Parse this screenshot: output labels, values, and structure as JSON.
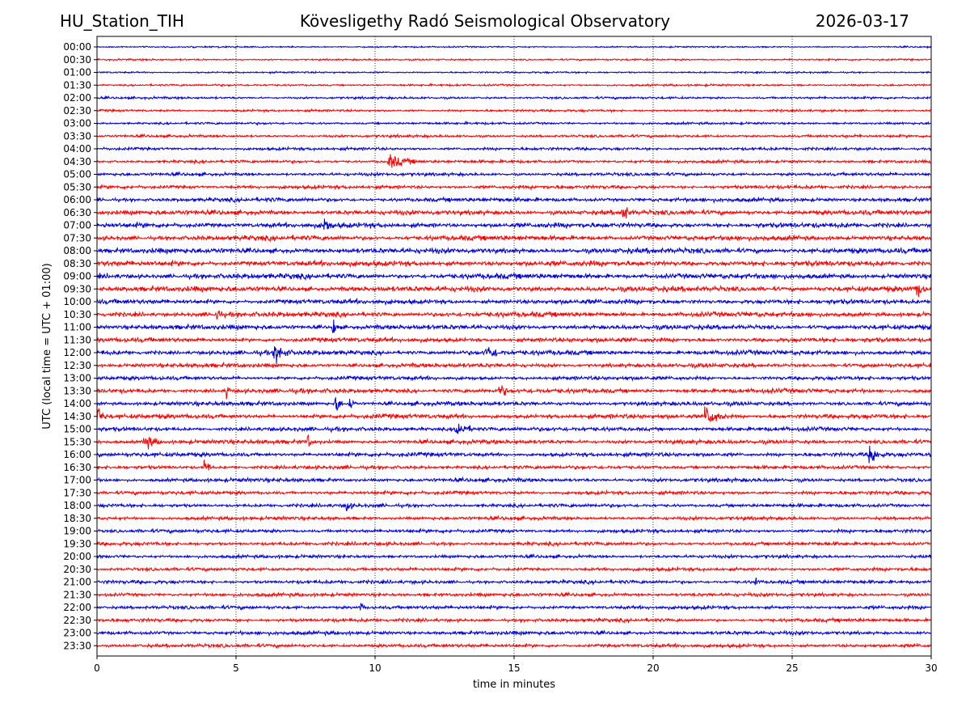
{
  "header": {
    "station": "HU_Station_TIH",
    "title": "Kövesligethy Radó Seismological Observatory",
    "date": "2026-03-17"
  },
  "chart_data": {
    "type": "line",
    "title": "Kövesligethy Radó Seismological Observatory",
    "xlabel": "time in minutes",
    "ylabel": "UTC (local time = UTC + 01:00)",
    "xlim": [
      0,
      30
    ],
    "x_ticks": [
      0,
      5,
      10,
      15,
      20,
      25,
      30
    ],
    "grid": "vertical dotted lines at 5-minute intervals",
    "colors": [
      "#0000dd",
      "#ff0000"
    ],
    "row_labels": [
      "00:00",
      "00:30",
      "01:00",
      "01:30",
      "02:00",
      "02:30",
      "03:00",
      "03:30",
      "04:00",
      "04:30",
      "05:00",
      "05:30",
      "06:00",
      "06:30",
      "07:00",
      "07:30",
      "08:00",
      "08:30",
      "09:00",
      "09:30",
      "10:00",
      "10:30",
      "11:00",
      "11:30",
      "12:00",
      "12:30",
      "13:00",
      "13:30",
      "14:00",
      "14:30",
      "15:00",
      "15:30",
      "16:00",
      "16:30",
      "17:00",
      "17:30",
      "18:00",
      "18:30",
      "19:00",
      "19:30",
      "20:00",
      "20:30",
      "21:00",
      "21:30",
      "22:00",
      "22:30",
      "23:00",
      "23:30"
    ],
    "noise_levels": [
      0.25,
      0.3,
      0.3,
      0.35,
      0.4,
      0.4,
      0.4,
      0.45,
      0.5,
      0.5,
      0.55,
      0.6,
      0.7,
      0.8,
      0.85,
      0.85,
      0.9,
      0.9,
      0.9,
      0.9,
      0.8,
      0.85,
      0.8,
      0.75,
      0.8,
      0.7,
      0.65,
      0.75,
      0.7,
      0.75,
      0.7,
      0.7,
      0.7,
      0.6,
      0.65,
      0.6,
      0.6,
      0.6,
      0.6,
      0.6,
      0.55,
      0.55,
      0.6,
      0.6,
      0.6,
      0.6,
      0.65,
      0.6
    ],
    "events": [
      {
        "row": "04:30",
        "minute": 10.5,
        "duration": 1.8,
        "amplitude": 1.6
      },
      {
        "row": "06:30",
        "minute": 18.9,
        "duration": 0.4,
        "amplitude": 2.0
      },
      {
        "row": "07:00",
        "minute": 8.2,
        "duration": 0.5,
        "amplitude": 1.3
      },
      {
        "row": "10:30",
        "minute": 4.3,
        "duration": 0.3,
        "amplitude": 1.5
      },
      {
        "row": "11:00",
        "minute": 8.5,
        "duration": 0.3,
        "amplitude": 1.5
      },
      {
        "row": "12:00",
        "minute": 6.4,
        "duration": 0.9,
        "amplitude": 1.6
      },
      {
        "row": "12:00",
        "minute": 14.0,
        "duration": 1.3,
        "amplitude": 1.1
      },
      {
        "row": "13:30",
        "minute": 14.5,
        "duration": 0.5,
        "amplitude": 1.4
      },
      {
        "row": "13:30",
        "minute": 4.7,
        "duration": 0.2,
        "amplitude": 1.3
      },
      {
        "row": "14:00",
        "minute": 8.6,
        "duration": 0.3,
        "amplitude": 2.2
      },
      {
        "row": "14:00",
        "minute": 9.1,
        "duration": 0.3,
        "amplitude": 1.5
      },
      {
        "row": "14:30",
        "minute": 0.0,
        "duration": 0.5,
        "amplitude": 1.8
      },
      {
        "row": "14:30",
        "minute": 21.9,
        "duration": 0.8,
        "amplitude": 2.4
      },
      {
        "row": "15:00",
        "minute": 12.9,
        "duration": 1.0,
        "amplitude": 1.6
      },
      {
        "row": "15:30",
        "minute": 1.7,
        "duration": 1.1,
        "amplitude": 1.3
      },
      {
        "row": "15:30",
        "minute": 7.6,
        "duration": 0.3,
        "amplitude": 1.2
      },
      {
        "row": "16:00",
        "minute": 27.8,
        "duration": 0.8,
        "amplitude": 1.8
      },
      {
        "row": "16:30",
        "minute": 3.9,
        "duration": 0.3,
        "amplitude": 2.0
      },
      {
        "row": "18:00",
        "minute": 9.0,
        "duration": 0.4,
        "amplitude": 1.4
      },
      {
        "row": "21:00",
        "minute": 23.7,
        "duration": 0.2,
        "amplitude": 1.2
      },
      {
        "row": "22:00",
        "minute": 9.5,
        "duration": 0.2,
        "amplitude": 1.2
      },
      {
        "row": "09:30",
        "minute": 29.5,
        "duration": 0.5,
        "amplitude": 1.3
      }
    ]
  }
}
